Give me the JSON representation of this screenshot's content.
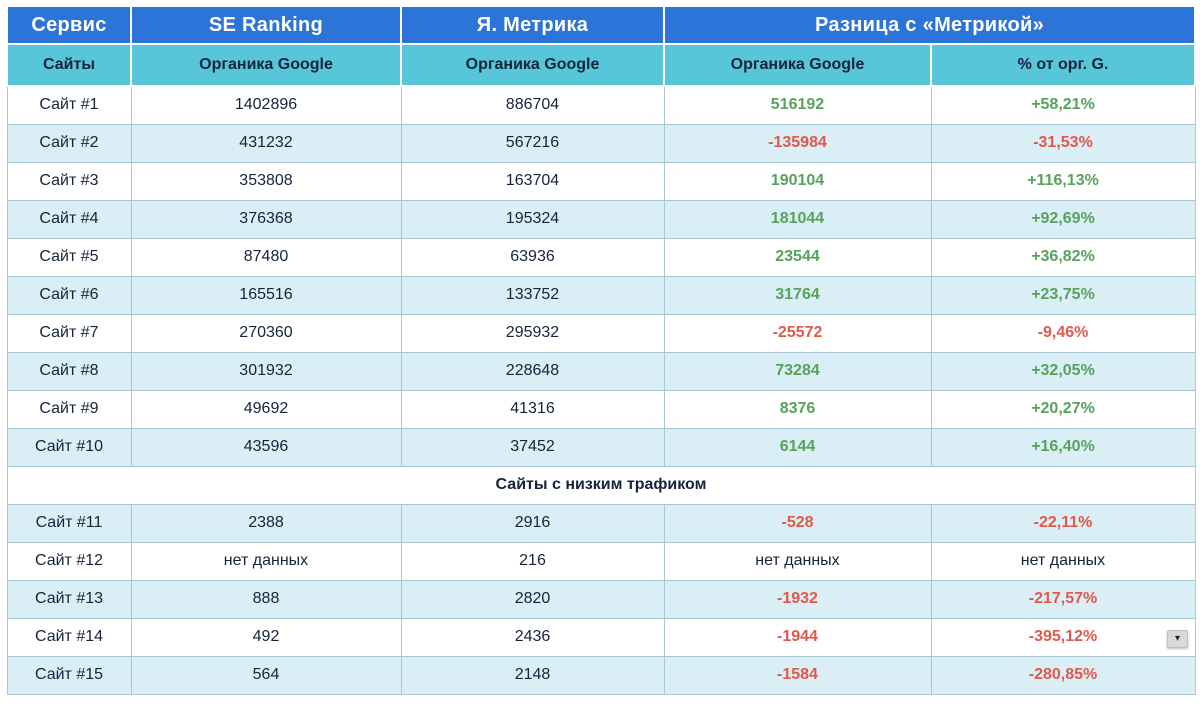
{
  "colors": {
    "header_blue": "#2d74d9",
    "header_teal": "#57c6d8",
    "header_text": "#ffffff",
    "row_alt": "#daeef6",
    "row_white": "#ffffff",
    "border": "#aac6d2",
    "text_dark": "#15233b",
    "positive": "#57a25d",
    "negative": "#e2584a"
  },
  "table": {
    "top_header": [
      {
        "label": "Сервис",
        "colspan": 1
      },
      {
        "label": "SE Ranking",
        "colspan": 1
      },
      {
        "label": "Я. Метрика",
        "colspan": 1
      },
      {
        "label": "Разница с «Метрикой»",
        "colspan": 2
      }
    ],
    "sub_header": [
      "Сайты",
      "Органика Google",
      "Органика Google",
      "Органика Google",
      "% от орг. G."
    ],
    "rows_top": [
      {
        "site": "Сайт #1",
        "se_ranking": "1402896",
        "metrika": "886704",
        "diff": "516192",
        "pct": "+58,21%",
        "trend": "positive"
      },
      {
        "site": "Сайт #2",
        "se_ranking": "431232",
        "metrika": "567216",
        "diff": "-135984",
        "pct": "-31,53%",
        "trend": "negative"
      },
      {
        "site": "Сайт #3",
        "se_ranking": "353808",
        "metrika": "163704",
        "diff": "190104",
        "pct": "+116,13%",
        "trend": "positive"
      },
      {
        "site": "Сайт #4",
        "se_ranking": "376368",
        "metrika": "195324",
        "diff": "181044",
        "pct": "+92,69%",
        "trend": "positive"
      },
      {
        "site": "Сайт #5",
        "se_ranking": "87480",
        "metrika": "63936",
        "diff": "23544",
        "pct": "+36,82%",
        "trend": "positive"
      },
      {
        "site": "Сайт #6",
        "se_ranking": "165516",
        "metrika": "133752",
        "diff": "31764",
        "pct": "+23,75%",
        "trend": "positive"
      },
      {
        "site": "Сайт #7",
        "se_ranking": "270360",
        "metrika": "295932",
        "diff": "-25572",
        "pct": "-9,46%",
        "trend": "negative"
      },
      {
        "site": "Сайт #8",
        "se_ranking": "301932",
        "metrika": "228648",
        "diff": "73284",
        "pct": "+32,05%",
        "trend": "positive"
      },
      {
        "site": "Сайт #9",
        "se_ranking": "49692",
        "metrika": "41316",
        "diff": "8376",
        "pct": "+20,27%",
        "trend": "positive"
      },
      {
        "site": "Сайт #10",
        "se_ranking": "43596",
        "metrika": "37452",
        "diff": "6144",
        "pct": "+16,40%",
        "trend": "positive"
      }
    ],
    "section_label": "Сайты с низким трафиком",
    "rows_low": [
      {
        "site": "Сайт #11",
        "se_ranking": "2388",
        "metrika": "2916",
        "diff": "-528",
        "pct": "-22,11%",
        "trend": "negative"
      },
      {
        "site": "Сайт #12",
        "se_ranking": "нет данных",
        "metrika": "216",
        "diff": "нет данных",
        "pct": "нет данных",
        "trend": "neutral"
      },
      {
        "site": "Сайт #13",
        "se_ranking": "888",
        "metrika": "2820",
        "diff": "-1932",
        "pct": "-217,57%",
        "trend": "negative"
      },
      {
        "site": "Сайт #14",
        "se_ranking": "492",
        "metrika": "2436",
        "diff": "-1944",
        "pct": "-395,12%",
        "trend": "negative"
      },
      {
        "site": "Сайт #15",
        "se_ranking": "564",
        "metrika": "2148",
        "diff": "-1584",
        "pct": "-280,85%",
        "trend": "negative"
      }
    ]
  },
  "widgets": {
    "filter_dropdown_glyph": "▾"
  }
}
